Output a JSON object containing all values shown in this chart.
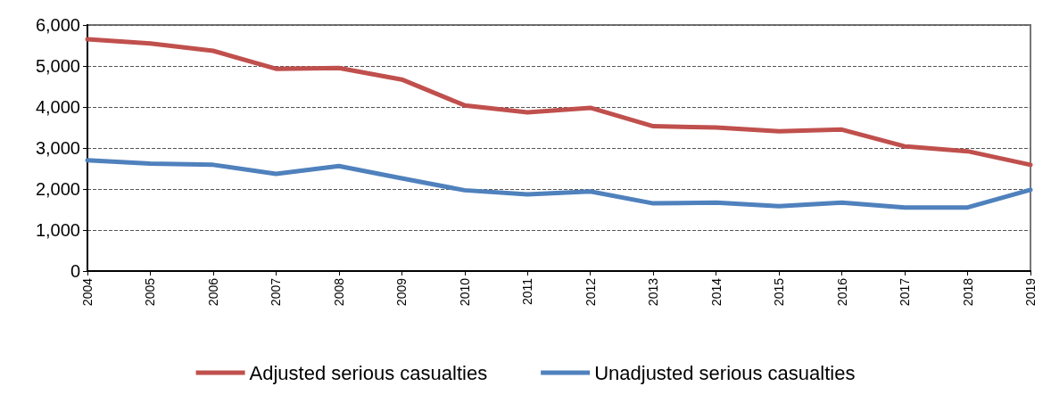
{
  "chart_data": {
    "type": "line",
    "categories": [
      "2004",
      "2005",
      "2006",
      "2007",
      "2008",
      "2009",
      "2010",
      "2011",
      "2012",
      "2013",
      "2014",
      "2015",
      "2016",
      "2017",
      "2018",
      "2019"
    ],
    "series": [
      {
        "name": "Adjusted serious casualties",
        "color": "#c0504d",
        "values": [
          5650,
          5550,
          5370,
          4930,
          4950,
          4670,
          4040,
          3870,
          3980,
          3530,
          3500,
          3410,
          3450,
          3040,
          2920,
          2590
        ]
      },
      {
        "name": "Unadjusted serious casualties",
        "color": "#4f81bd",
        "values": [
          2700,
          2620,
          2590,
          2370,
          2560,
          2260,
          1970,
          1870,
          1940,
          1650,
          1670,
          1580,
          1670,
          1550,
          1550,
          1980
        ]
      }
    ],
    "ylim": [
      0,
      6000
    ],
    "yticks": [
      0,
      {
        "value": 1000,
        "label": "1,000"
      },
      {
        "value": 2000,
        "label": "2,000"
      },
      {
        "value": 3000,
        "label": "3,000"
      },
      {
        "value": 4000,
        "label": "4,000"
      },
      {
        "value": 5000,
        "label": "5,000"
      },
      {
        "value": 6000,
        "label": "6,000"
      }
    ],
    "grid": "y",
    "legend": "bottom",
    "marker": "none",
    "line_style": "solid"
  }
}
